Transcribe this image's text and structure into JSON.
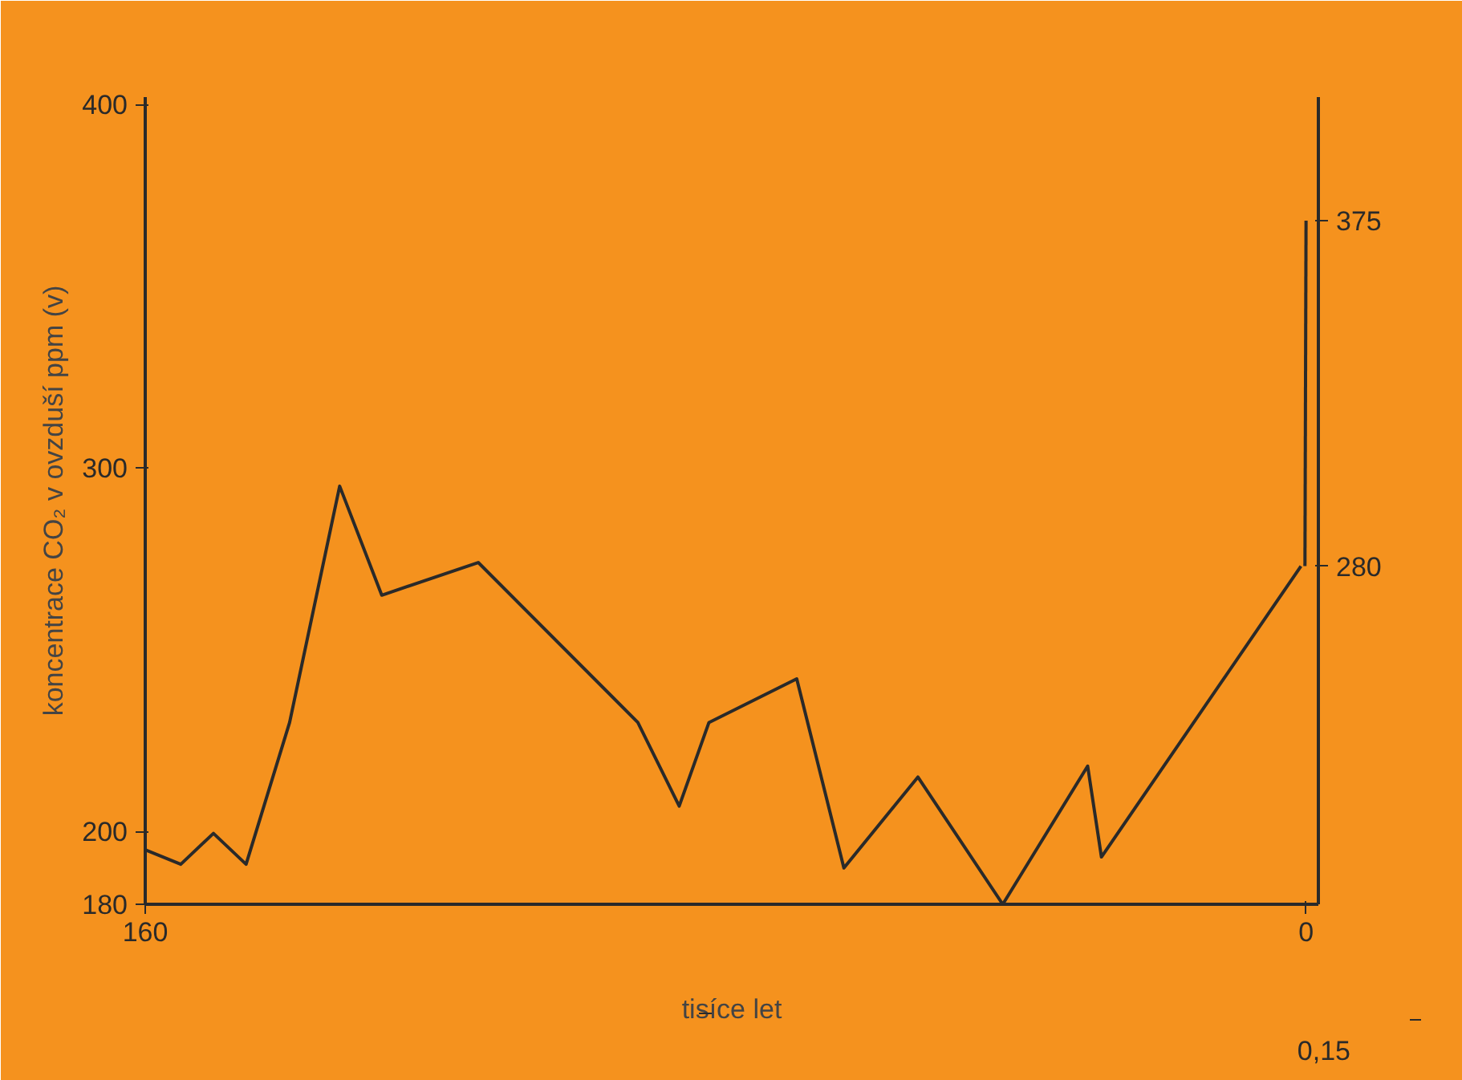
{
  "chart_data": {
    "type": "line",
    "ylabel": "koncentrace CO₂ v ovzduší ppm (v)",
    "xlabel": "tisíce let",
    "xlim": [
      160,
      -1.7
    ],
    "xticks": [
      160,
      0
    ],
    "ylim": [
      180,
      402
    ],
    "yticks": [
      180,
      200,
      300,
      400
    ],
    "y2lim": [
      187,
      409
    ],
    "y2ticks": [
      280,
      375
    ],
    "grid": false,
    "marker": "none",
    "line_style": "solid",
    "annotations": [
      "0,15"
    ],
    "series": [
      {
        "color": "#2a2a2a",
        "x": [
          160,
          155.1,
          150.6,
          146.1,
          140.1,
          133.2,
          127.4,
          114.1,
          92.1,
          86.4,
          82.3,
          70.2,
          63.7,
          53.5,
          41.8,
          30.1,
          28.2,
          0.7
        ],
        "values": [
          195,
          191,
          199.5,
          191,
          230,
          295,
          265,
          274,
          230,
          207,
          230,
          242,
          190,
          215,
          180,
          218,
          193,
          273
        ]
      },
      {
        "color": "#2a2a2a",
        "axis": "y2",
        "x": [
          0.15,
          0
        ],
        "values": [
          280,
          375
        ]
      }
    ]
  }
}
